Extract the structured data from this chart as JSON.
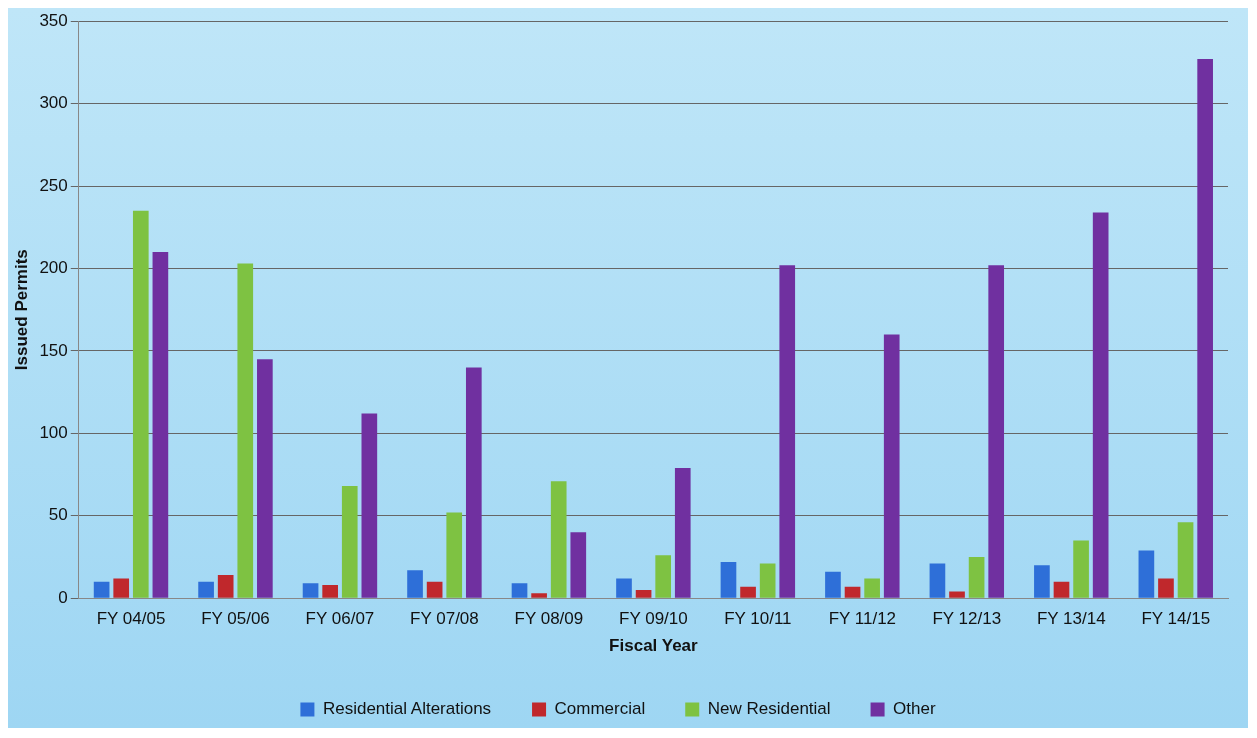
{
  "chart_data": {
    "type": "bar",
    "xlabel": "Fiscal Year",
    "ylabel": "Issued Permits",
    "categories": [
      "FY 04/05",
      "FY 05/06",
      "FY 06/07",
      "FY 07/08",
      "FY 08/09",
      "FY 09/10",
      "FY 10/11",
      "FY 11/12",
      "FY 12/13",
      "FY 13/14",
      "FY 14/15"
    ],
    "series": [
      {
        "name": "Residential Alterations",
        "color": "#2e6fd8",
        "values": [
          10,
          10,
          9,
          17,
          9,
          12,
          22,
          16,
          21,
          20,
          29
        ]
      },
      {
        "name": "Commercial",
        "color": "#c0282c",
        "values": [
          12,
          14,
          8,
          10,
          3,
          5,
          7,
          7,
          4,
          10,
          12
        ]
      },
      {
        "name": "New Residential",
        "color": "#7ec242",
        "values": [
          235,
          203,
          68,
          52,
          71,
          26,
          21,
          12,
          25,
          35,
          46
        ]
      },
      {
        "name": "Other",
        "color": "#7030a0",
        "values": [
          210,
          145,
          112,
          140,
          40,
          79,
          202,
          160,
          202,
          234,
          327
        ]
      }
    ],
    "ylim": [
      0,
      350
    ],
    "yticks": [
      0,
      50,
      100,
      150,
      200,
      250,
      300,
      350
    ],
    "grid": "y",
    "legend": "bottom"
  }
}
